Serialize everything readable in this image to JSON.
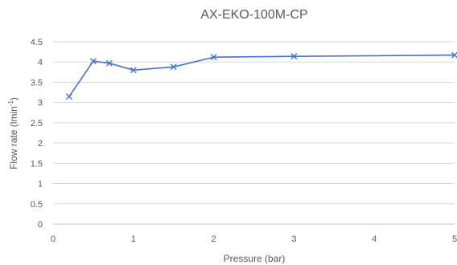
{
  "chart_data": {
    "type": "line",
    "title": "AX-EKO-100M-CP",
    "xlabel": "Pressure (bar)",
    "ylabel": {
      "base": "Flow rate (lmin",
      "sup": "-1",
      "tail": ")"
    },
    "xlim": [
      0,
      5
    ],
    "ylim": [
      0,
      4.5
    ],
    "x_ticks": [
      0,
      1,
      2,
      3,
      4,
      5
    ],
    "y_ticks": [
      0,
      0.5,
      1,
      1.5,
      2,
      2.5,
      3,
      3.5,
      4,
      4.5
    ],
    "grid": {
      "horizontal": true,
      "vertical": false
    },
    "series": [
      {
        "marker": "x",
        "color": "#4472c4",
        "x": [
          0.2,
          0.5,
          0.7,
          1.0,
          1.5,
          2.0,
          3.0,
          5.0
        ],
        "y": [
          3.15,
          4.02,
          3.97,
          3.8,
          3.88,
          4.12,
          4.14,
          4.17
        ]
      }
    ]
  }
}
